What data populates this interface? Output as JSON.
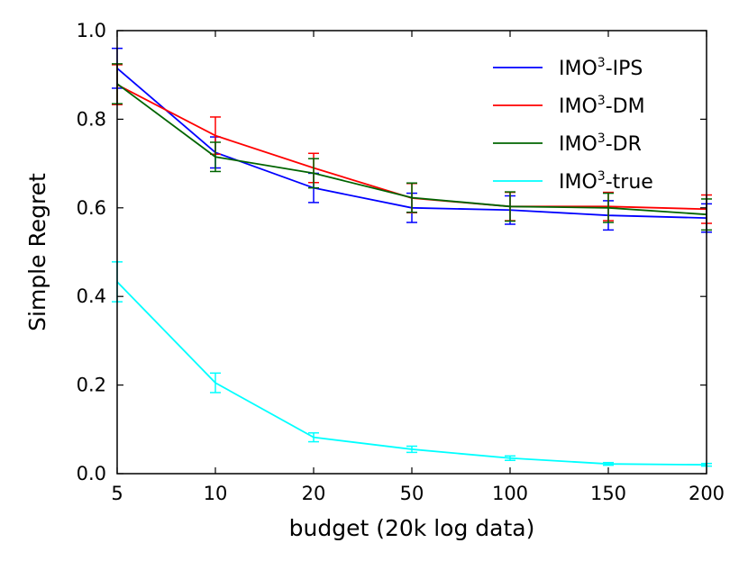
{
  "chart_data": {
    "type": "line",
    "title": "",
    "xlabel": "budget (20k log data)",
    "ylabel": "Simple Regret",
    "categories": [
      "5",
      "10",
      "20",
      "50",
      "100",
      "150",
      "200"
    ],
    "ylim": [
      0.0,
      1.0
    ],
    "yticks": [
      "0.0",
      "0.2",
      "0.4",
      "0.6",
      "0.8",
      "1.0"
    ],
    "legend_position": "top-right",
    "series": [
      {
        "name_base": "IMO",
        "name_sup": "3",
        "name_suffix": "-IPS",
        "color": "#0000ff",
        "values": [
          0.915,
          0.725,
          0.645,
          0.6,
          0.595,
          0.583,
          0.577
        ],
        "err": [
          0.045,
          0.035,
          0.033,
          0.033,
          0.032,
          0.033,
          0.032
        ]
      },
      {
        "name_base": "IMO",
        "name_sup": "3",
        "name_suffix": "-DM",
        "color": "#ff0000",
        "values": [
          0.878,
          0.763,
          0.69,
          0.622,
          0.603,
          0.603,
          0.597
        ],
        "err": [
          0.045,
          0.042,
          0.033,
          0.033,
          0.032,
          0.032,
          0.032
        ]
      },
      {
        "name_base": "IMO",
        "name_sup": "3",
        "name_suffix": "-DR",
        "color": "#006400",
        "values": [
          0.88,
          0.715,
          0.678,
          0.623,
          0.603,
          0.6,
          0.585
        ],
        "err": [
          0.045,
          0.033,
          0.033,
          0.033,
          0.033,
          0.033,
          0.035
        ]
      },
      {
        "name_base": "IMO",
        "name_sup": "3",
        "name_suffix": "-true",
        "color": "#00ffff",
        "values": [
          0.433,
          0.205,
          0.082,
          0.055,
          0.035,
          0.022,
          0.02
        ],
        "err": [
          0.045,
          0.022,
          0.01,
          0.007,
          0.005,
          0.003,
          0.003
        ]
      }
    ]
  }
}
